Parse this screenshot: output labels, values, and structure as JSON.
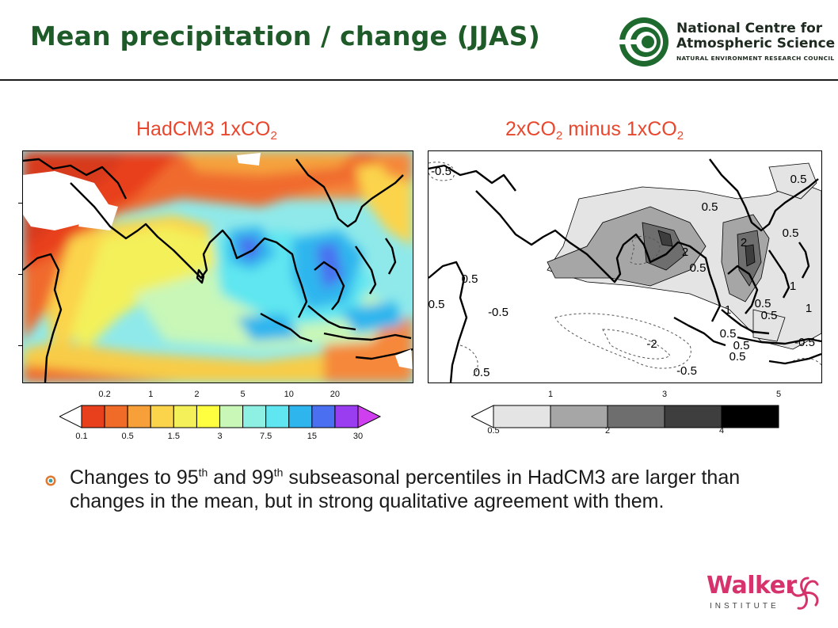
{
  "slide": {
    "title": "Mean precipitation / change (JJAS)"
  },
  "logo_ncas": {
    "line1": "National Centre for",
    "line2": "Atmospheric Science",
    "line3": "NATURAL ENVIRONMENT RESEARCH COUNCIL",
    "icon": "ncas-swirl-logo"
  },
  "map_left": {
    "title_main": "HadCM3 1xCO",
    "title_sub": "2",
    "colorbar": {
      "top_labels": [
        "0.2",
        "1",
        "2",
        "5",
        "10",
        "20"
      ],
      "bottom_labels": [
        "0.1",
        "0.5",
        "1.5",
        "3",
        "7.5",
        "15",
        "30"
      ],
      "colors": [
        "#ffffff",
        "#e8401c",
        "#f06a28",
        "#f7a039",
        "#fbd44b",
        "#f3f05a",
        "#ffff3f",
        "#c8f7b8",
        "#8df0e2",
        "#5fe6f0",
        "#2fb5ee",
        "#4a6ff0",
        "#9a3cf0",
        "#cf3ff0"
      ]
    }
  },
  "map_right": {
    "title_a": "2xCO",
    "title_a_sub": "2",
    "title_b": " minus 1xCO",
    "title_b_sub": "2",
    "contour_labels": [
      "-0.5",
      "0.5",
      "0.5",
      "0.5",
      "2",
      "2",
      "0.5",
      "0.5",
      "1",
      "1",
      "0.5",
      "1",
      "0.5",
      "-0.5",
      "0.5",
      "-2",
      "-0.5",
      "0.5",
      "0.5",
      "-0.5",
      "0.5",
      "0.5"
    ],
    "colorbar": {
      "top_labels": [
        "1",
        "3",
        "5"
      ],
      "bottom_labels": [
        "0.5",
        "2",
        "4"
      ],
      "colors": [
        "#ffffff",
        "#e4e4e4",
        "#a6a6a6",
        "#6e6e6e",
        "#3e3e3e",
        "#000000"
      ]
    }
  },
  "bullet": {
    "part1": "Changes to 95",
    "sup1": "th",
    "part2": " and 99",
    "sup2": "th",
    "part3": " subseasonal percentiles in HadCM3 are larger than changes in the mean, but in strong qualitative agreement with them."
  },
  "logo_walker": {
    "name": "Walker",
    "sub": "INSTITUTE",
    "icon": "walker-flower-logo"
  }
}
